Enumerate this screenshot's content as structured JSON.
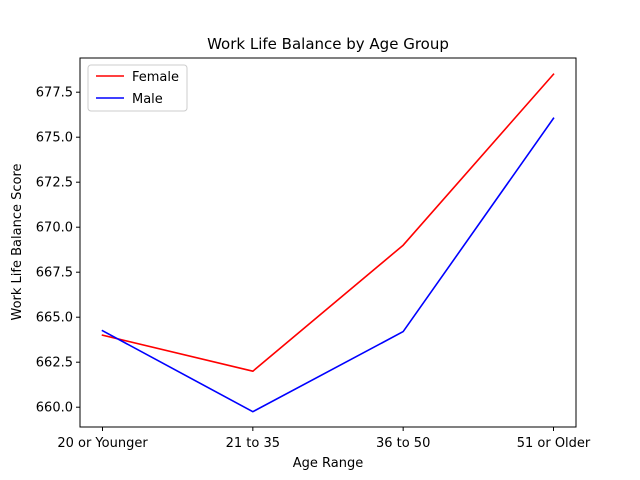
{
  "chart_data": {
    "type": "line",
    "title": "Work Life Balance by Age Group",
    "xlabel": "Age Range",
    "ylabel": "Work Life Balance Score",
    "categories": [
      "20 or Younger",
      "21 to 35",
      "36 to 50",
      "51 or Older"
    ],
    "series": [
      {
        "name": "Female",
        "color": "#ff0000",
        "values": [
          664.0,
          662.0,
          669.0,
          678.5
        ]
      },
      {
        "name": "Male",
        "color": "#0000ff",
        "values": [
          664.25,
          659.75,
          664.2,
          676.05
        ]
      }
    ],
    "ylim": [
      658.9,
      679.4
    ],
    "yticks": [
      660.0,
      662.5,
      665.0,
      667.5,
      670.0,
      672.5,
      675.0,
      677.5
    ],
    "ytick_labels": [
      "660.0",
      "662.5",
      "665.0",
      "667.5",
      "670.0",
      "672.5",
      "675.0",
      "677.5"
    ],
    "grid": false,
    "legend_position": "top-left"
  }
}
